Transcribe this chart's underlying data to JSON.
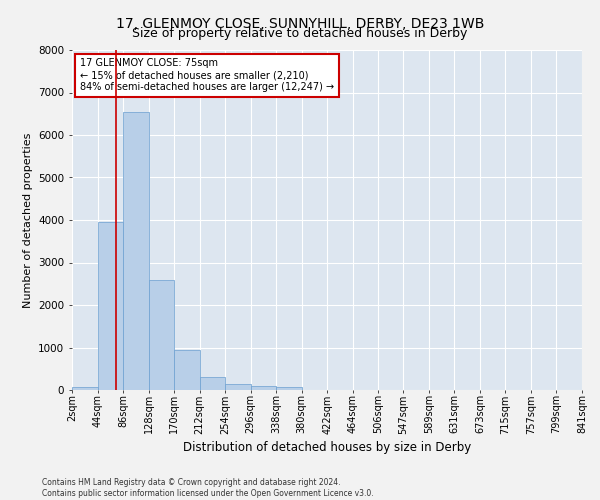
{
  "title_line1": "17, GLENMOY CLOSE, SUNNYHILL, DERBY, DE23 1WB",
  "title_line2": "Size of property relative to detached houses in Derby",
  "xlabel": "Distribution of detached houses by size in Derby",
  "ylabel": "Number of detached properties",
  "footer_line1": "Contains HM Land Registry data © Crown copyright and database right 2024.",
  "footer_line2": "Contains public sector information licensed under the Open Government Licence v3.0.",
  "annotation_title": "17 GLENMOY CLOSE: 75sqm",
  "annotation_line1": "← 15% of detached houses are smaller (2,210)",
  "annotation_line2": "84% of semi-detached houses are larger (12,247) →",
  "bar_values": [
    75,
    3950,
    6530,
    2600,
    940,
    300,
    130,
    100,
    70,
    0,
    0,
    0,
    0,
    0,
    0,
    0,
    0,
    0,
    0,
    0
  ],
  "bin_edges": [
    2,
    44,
    86,
    128,
    170,
    212,
    254,
    296,
    338,
    380,
    422,
    464,
    506,
    547,
    589,
    631,
    673,
    715,
    757,
    799,
    841
  ],
  "tick_labels": [
    "2sqm",
    "44sqm",
    "86sqm",
    "128sqm",
    "170sqm",
    "212sqm",
    "254sqm",
    "296sqm",
    "338sqm",
    "380sqm",
    "422sqm",
    "464sqm",
    "506sqm",
    "547sqm",
    "589sqm",
    "631sqm",
    "673sqm",
    "715sqm",
    "757sqm",
    "799sqm",
    "841sqm"
  ],
  "ylim": [
    0,
    8000
  ],
  "yticks": [
    0,
    1000,
    2000,
    3000,
    4000,
    5000,
    6000,
    7000,
    8000
  ],
  "bar_color": "#b8cfe8",
  "bar_edge_color": "#6a9fd0",
  "vline_x": 75,
  "vline_color": "#cc0000",
  "annotation_box_color": "#ffffff",
  "annotation_box_edge": "#cc0000",
  "bg_color": "#dde6f0",
  "grid_color": "#ffffff",
  "fig_bg_color": "#f2f2f2",
  "title_fontsize": 10,
  "subtitle_fontsize": 9,
  "axis_label_fontsize": 8,
  "tick_fontsize": 7,
  "annotation_fontsize": 7,
  "footer_fontsize": 5.5
}
